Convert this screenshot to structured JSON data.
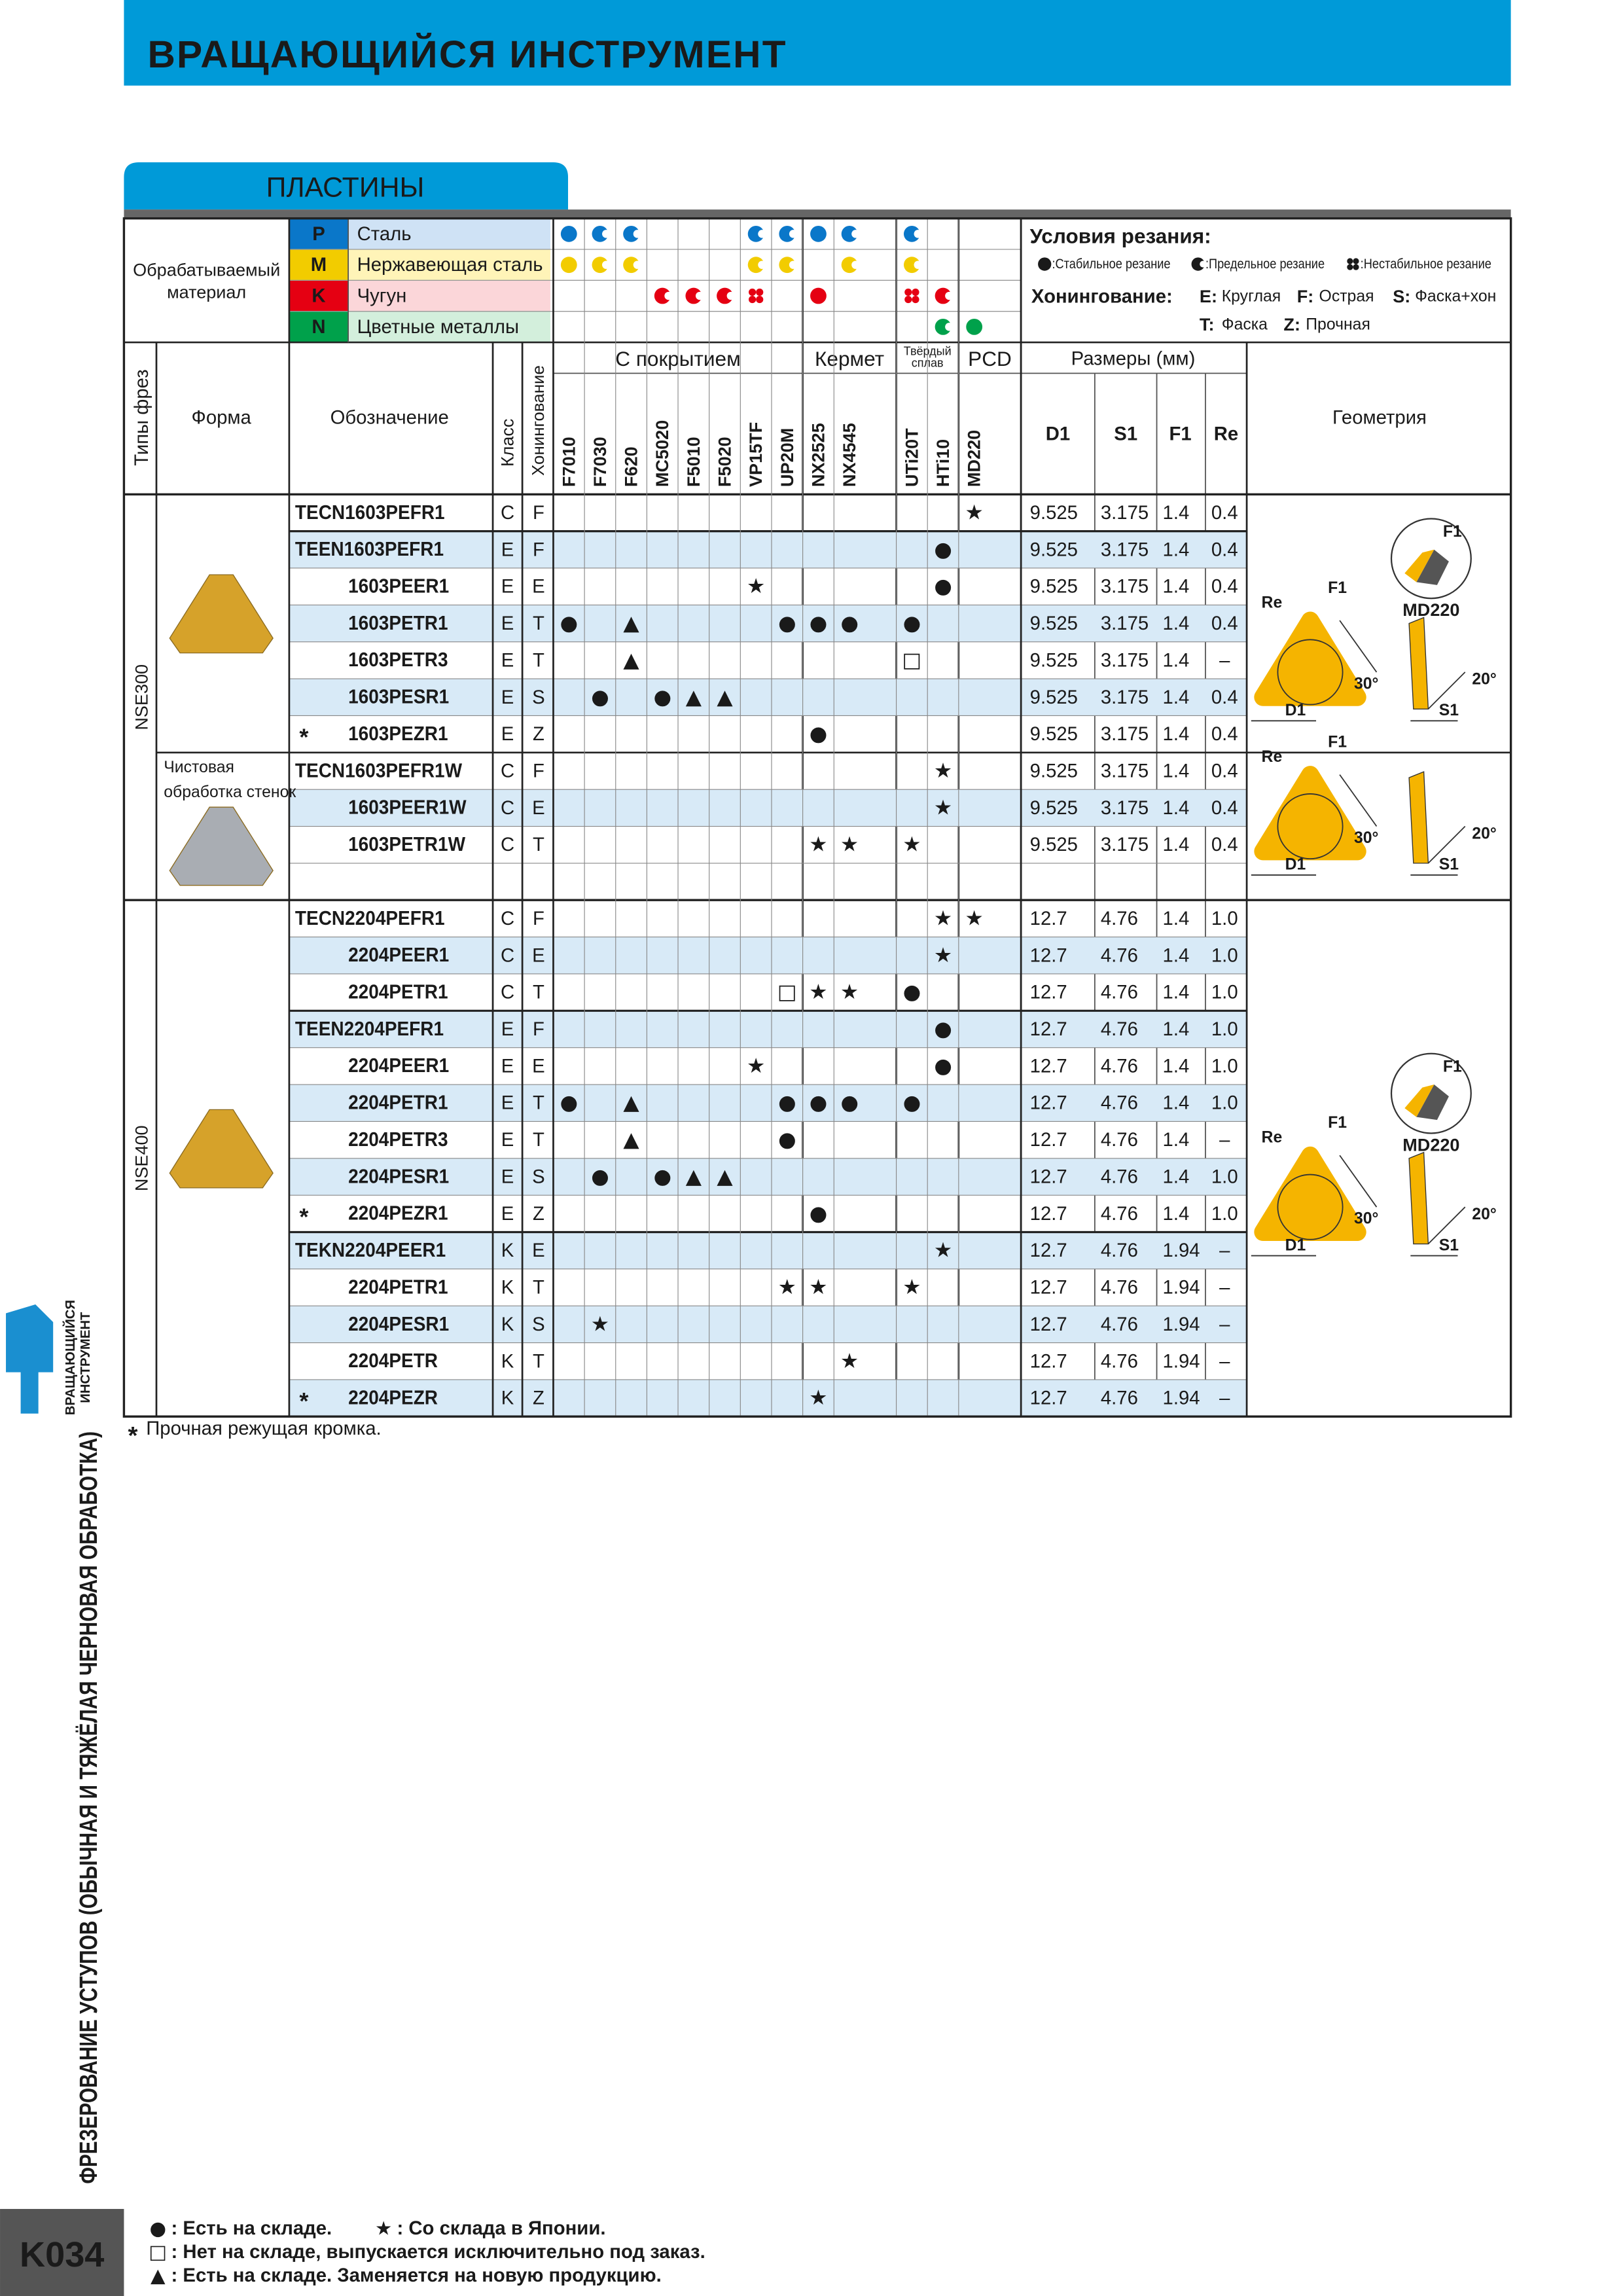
{
  "header": {
    "title": "ВРАЩАЮЩИЙСЯ ИНСТРУМЕНТ"
  },
  "section": {
    "title": "ПЛАСТИНЫ"
  },
  "materials": {
    "label": [
      "Обрабатываемый",
      "материал"
    ],
    "items": [
      {
        "code": "P",
        "name": "Сталь",
        "color": "#0a77c9",
        "tint": "#cfe2f5"
      },
      {
        "code": "M",
        "name": "Нержавеющая сталь",
        "color": "#f2cc00",
        "tint": "#fff4b8"
      },
      {
        "code": "K",
        "name": "Чугун",
        "color": "#e50012",
        "tint": "#fbd6d9"
      },
      {
        "code": "N",
        "name": "Цветные металлы",
        "color": "#00a14b",
        "tint": "#d3efdc"
      }
    ]
  },
  "conditions": {
    "title": "Условия резания:",
    "legend": [
      {
        "kind": "stable",
        "text": ":Стабильное резание"
      },
      {
        "kind": "limit",
        "text": ":Предельное резание"
      },
      {
        "kind": "unstable",
        "text": ":Нестабильное резание"
      }
    ]
  },
  "honing": {
    "title": "Хонингование:",
    "items": [
      {
        "code": "E:",
        "text": "Круглая"
      },
      {
        "code": "F:",
        "text": "Острая"
      },
      {
        "code": "S:",
        "text": "Фаска+хон"
      },
      {
        "code": "T:",
        "text": "Фаска"
      },
      {
        "code": "Z:",
        "text": "Прочная"
      }
    ]
  },
  "columns": {
    "type": "Типы фрез",
    "shape": "Форма",
    "designation": "Обозначение",
    "class": "Класс",
    "honing": "Хонингование",
    "sizes": "Размеры (мм)",
    "dims": [
      "D1",
      "S1",
      "F1",
      "Re"
    ],
    "geometry": "Геометрия"
  },
  "groups": [
    {
      "name": [
        "С покрытием"
      ],
      "grades": [
        {
          "name": "F7010",
          "materials": {
            "P": "stable",
            "M": "stable"
          }
        },
        {
          "name": "F7030",
          "materials": {
            "P": "limit",
            "M": "limit"
          }
        },
        {
          "name": "F620",
          "materials": {
            "P": "limit",
            "M": "limit"
          }
        },
        {
          "name": "MC5020",
          "materials": {
            "K": "limit"
          }
        },
        {
          "name": "F5010",
          "materials": {
            "K": "limit"
          }
        },
        {
          "name": "F5020",
          "materials": {
            "K": "limit"
          }
        },
        {
          "name": "VP15TF",
          "materials": {
            "P": "limit",
            "M": "limit",
            "K": "unstable"
          }
        },
        {
          "name": "UP20M",
          "materials": {
            "P": "limit",
            "M": "limit"
          }
        }
      ]
    },
    {
      "name": [
        "Кермет"
      ],
      "grades": [
        {
          "name": "NX2525",
          "materials": {
            "P": "stable",
            "K": "stable"
          }
        },
        {
          "name": "NX4545",
          "materials": {
            "P": "limit",
            "M": "limit"
          }
        }
      ]
    },
    {
      "name": [
        "Твёрдый",
        "сплав"
      ],
      "grades": [
        {
          "name": "UTi20T",
          "materials": {
            "P": "limit",
            "M": "limit",
            "K": "unstable"
          }
        },
        {
          "name": "HTi10",
          "materials": {
            "K": "limit",
            "N": "limit"
          }
        }
      ]
    },
    {
      "name": [
        "PCD"
      ],
      "grades": [
        {
          "name": "MD220",
          "materials": {
            "N": "stable"
          }
        }
      ]
    }
  ],
  "types": [
    {
      "name": "NSE300",
      "blocks": [
        {
          "shape": "#d6a22a",
          "geometry": {
            "re": "Re",
            "f1": "F1",
            "a1": "30°",
            "a2": "20°",
            "d1": "D1",
            "s1": "S1",
            "detail": {
              "grade": "MD220",
              "f1": "F1"
            }
          },
          "rows": [
            {
              "code": "TECN1603PEFR1",
              "class": "C",
              "honing": "F",
              "avail": [
                null,
                null,
                null,
                null,
                null,
                null,
                null,
                null,
                null,
                null,
                null,
                null,
                "★"
              ],
              "dims": [
                "9.525",
                "3.175",
                "1.4",
                "0.4"
              ]
            },
            {
              "code": "TEEN1603PEFR1",
              "class": "E",
              "honing": "F",
              "avail": [
                null,
                null,
                null,
                null,
                null,
                null,
                null,
                null,
                null,
                null,
                null,
                "●",
                null
              ],
              "dims": [
                "9.525",
                "3.175",
                "1.4",
                "0.4"
              ]
            },
            {
              "code": "1603PEER1",
              "class": "E",
              "honing": "E",
              "avail": [
                null,
                null,
                null,
                null,
                null,
                null,
                "★",
                null,
                null,
                null,
                null,
                "●",
                null
              ],
              "dims": [
                "9.525",
                "3.175",
                "1.4",
                "0.4"
              ]
            },
            {
              "code": "1603PETR1",
              "class": "E",
              "honing": "T",
              "avail": [
                "●",
                null,
                "▲",
                null,
                null,
                null,
                null,
                "●",
                "●",
                "●",
                "●",
                null,
                null
              ],
              "dims": [
                "9.525",
                "3.175",
                "1.4",
                "0.4"
              ]
            },
            {
              "code": "1603PETR3",
              "class": "E",
              "honing": "T",
              "avail": [
                null,
                null,
                "▲",
                null,
                null,
                null,
                null,
                null,
                null,
                null,
                "□",
                null,
                null
              ],
              "dims": [
                "9.525",
                "3.175",
                "1.4",
                "–"
              ]
            },
            {
              "code": "1603PESR1",
              "class": "E",
              "honing": "S",
              "avail": [
                null,
                "●",
                null,
                "●",
                "▲",
                "▲",
                null,
                null,
                null,
                null,
                null,
                null,
                null
              ],
              "dims": [
                "9.525",
                "3.175",
                "1.4",
                "0.4"
              ]
            },
            {
              "mark": "*",
              "code": "1603PEZR1",
              "class": "E",
              "honing": "Z",
              "avail": [
                null,
                null,
                null,
                null,
                null,
                null,
                null,
                null,
                "●",
                null,
                null,
                null,
                null
              ],
              "dims": [
                "9.525",
                "3.175",
                "1.4",
                "0.4"
              ]
            }
          ]
        },
        {
          "note": [
            "Чистовая",
            "обработка стенок"
          ],
          "shape": "#a9adb3",
          "geometry": {
            "re": "Re",
            "f1": "F1",
            "a1": "30°",
            "a2": "20°",
            "d1": "D1",
            "s1": "S1"
          },
          "rows": [
            {
              "code": "TECN1603PEFR1W",
              "class": "C",
              "honing": "F",
              "avail": [
                null,
                null,
                null,
                null,
                null,
                null,
                null,
                null,
                null,
                null,
                null,
                "★",
                null
              ],
              "dims": [
                "9.525",
                "3.175",
                "1.4",
                "0.4"
              ]
            },
            {
              "code": "1603PEER1W",
              "class": "C",
              "honing": "E",
              "avail": [
                null,
                null,
                null,
                null,
                null,
                null,
                null,
                null,
                null,
                null,
                null,
                "★",
                null
              ],
              "dims": [
                "9.525",
                "3.175",
                "1.4",
                "0.4"
              ]
            },
            {
              "code": "1603PETR1W",
              "class": "C",
              "honing": "T",
              "avail": [
                null,
                null,
                null,
                null,
                null,
                null,
                null,
                null,
                "★",
                "★",
                "★",
                null,
                null
              ],
              "dims": [
                "9.525",
                "3.175",
                "1.4",
                "0.4"
              ]
            }
          ]
        }
      ]
    },
    {
      "name": "NSE400",
      "blocks": [
        {
          "shape": "#d6a22a",
          "geometry": {
            "re": "Re",
            "f1": "F1",
            "a1": "30°",
            "a2": "20°",
            "d1": "D1",
            "s1": "S1",
            "detail": {
              "grade": "MD220",
              "f1": "F1"
            }
          },
          "rows": [
            {
              "code": "TECN2204PEFR1",
              "class": "C",
              "honing": "F",
              "avail": [
                null,
                null,
                null,
                null,
                null,
                null,
                null,
                null,
                null,
                null,
                null,
                "★",
                "★"
              ],
              "dims": [
                "12.7",
                "4.76",
                "1.4",
                "1.0"
              ]
            },
            {
              "code": "2204PEER1",
              "class": "C",
              "honing": "E",
              "avail": [
                null,
                null,
                null,
                null,
                null,
                null,
                null,
                null,
                null,
                null,
                null,
                "★",
                null
              ],
              "dims": [
                "12.7",
                "4.76",
                "1.4",
                "1.0"
              ]
            },
            {
              "code": "2204PETR1",
              "class": "C",
              "honing": "T",
              "avail": [
                null,
                null,
                null,
                null,
                null,
                null,
                null,
                "□",
                "★",
                "★",
                "●",
                null,
                null
              ],
              "dims": [
                "12.7",
                "4.76",
                "1.4",
                "1.0"
              ]
            },
            {
              "code": "TEEN2204PEFR1",
              "class": "E",
              "honing": "F",
              "avail": [
                null,
                null,
                null,
                null,
                null,
                null,
                null,
                null,
                null,
                null,
                null,
                "●",
                null
              ],
              "dims": [
                "12.7",
                "4.76",
                "1.4",
                "1.0"
              ]
            },
            {
              "code": "2204PEER1",
              "class": "E",
              "honing": "E",
              "avail": [
                null,
                null,
                null,
                null,
                null,
                null,
                "★",
                null,
                null,
                null,
                null,
                "●",
                null
              ],
              "dims": [
                "12.7",
                "4.76",
                "1.4",
                "1.0"
              ]
            },
            {
              "code": "2204PETR1",
              "class": "E",
              "honing": "T",
              "avail": [
                "●",
                null,
                "▲",
                null,
                null,
                null,
                null,
                "●",
                "●",
                "●",
                "●",
                null,
                null
              ],
              "dims": [
                "12.7",
                "4.76",
                "1.4",
                "1.0"
              ]
            },
            {
              "code": "2204PETR3",
              "class": "E",
              "honing": "T",
              "avail": [
                null,
                null,
                "▲",
                null,
                null,
                null,
                null,
                "●",
                null,
                null,
                null,
                null,
                null
              ],
              "dims": [
                "12.7",
                "4.76",
                "1.4",
                "–"
              ]
            },
            {
              "code": "2204PESR1",
              "class": "E",
              "honing": "S",
              "avail": [
                null,
                "●",
                null,
                "●",
                "▲",
                "▲",
                null,
                null,
                null,
                null,
                null,
                null,
                null
              ],
              "dims": [
                "12.7",
                "4.76",
                "1.4",
                "1.0"
              ]
            },
            {
              "mark": "*",
              "code": "2204PEZR1",
              "class": "E",
              "honing": "Z",
              "avail": [
                null,
                null,
                null,
                null,
                null,
                null,
                null,
                null,
                "●",
                null,
                null,
                null,
                null
              ],
              "dims": [
                "12.7",
                "4.76",
                "1.4",
                "1.0"
              ]
            },
            {
              "code": "TEKN2204PEER1",
              "class": "K",
              "honing": "E",
              "avail": [
                null,
                null,
                null,
                null,
                null,
                null,
                null,
                null,
                null,
                null,
                null,
                "★",
                null
              ],
              "dims": [
                "12.7",
                "4.76",
                "1.94",
                "–"
              ]
            },
            {
              "code": "2204PETR1",
              "class": "K",
              "honing": "T",
              "avail": [
                null,
                null,
                null,
                null,
                null,
                null,
                null,
                "★",
                "★",
                null,
                "★",
                null,
                null
              ],
              "dims": [
                "12.7",
                "4.76",
                "1.94",
                "–"
              ]
            },
            {
              "code": "2204PESR1",
              "class": "K",
              "honing": "S",
              "avail": [
                null,
                "★",
                null,
                null,
                null,
                null,
                null,
                null,
                null,
                null,
                null,
                null,
                null
              ],
              "dims": [
                "12.7",
                "4.76",
                "1.94",
                "–"
              ]
            },
            {
              "code": "2204PETR",
              "class": "K",
              "honing": "T",
              "avail": [
                null,
                null,
                null,
                null,
                null,
                null,
                null,
                null,
                null,
                "★",
                null,
                null,
                null
              ],
              "dims": [
                "12.7",
                "4.76",
                "1.94",
                "–"
              ]
            },
            {
              "mark": "*",
              "code": "2204PEZR",
              "class": "K",
              "honing": "Z",
              "avail": [
                null,
                null,
                null,
                null,
                null,
                null,
                null,
                null,
                "★",
                null,
                null,
                null,
                null
              ],
              "dims": [
                "12.7",
                "4.76",
                "1.94",
                "–"
              ]
            }
          ]
        }
      ]
    }
  ],
  "footnote": {
    "mark": "*",
    "text": "Прочная режущая кромка."
  },
  "legend": [
    [
      {
        "symbol": "●",
        "text": ": Есть на складе."
      },
      {
        "symbol": "★",
        "text": ": Со склада в Японии."
      }
    ],
    [
      {
        "symbol": "□",
        "text": ": Нет на складе, выпускается исключительно под заказ."
      }
    ],
    [
      {
        "symbol": "▲",
        "text": ": Есть на складе. Заменяется на новую продукцию."
      }
    ]
  ],
  "side": {
    "tab": [
      "ВРАЩАЮЩИЙСЯ",
      "ИНСТРУМЕНТ"
    ],
    "chapter": "ФРЕЗЕРОВАНИЕ УСТУПОВ (ОБЫЧНАЯ И ТЯЖЁЛАЯ ЧЕРНОВАЯ ОБРАБОТКА)",
    "page": "K034"
  }
}
